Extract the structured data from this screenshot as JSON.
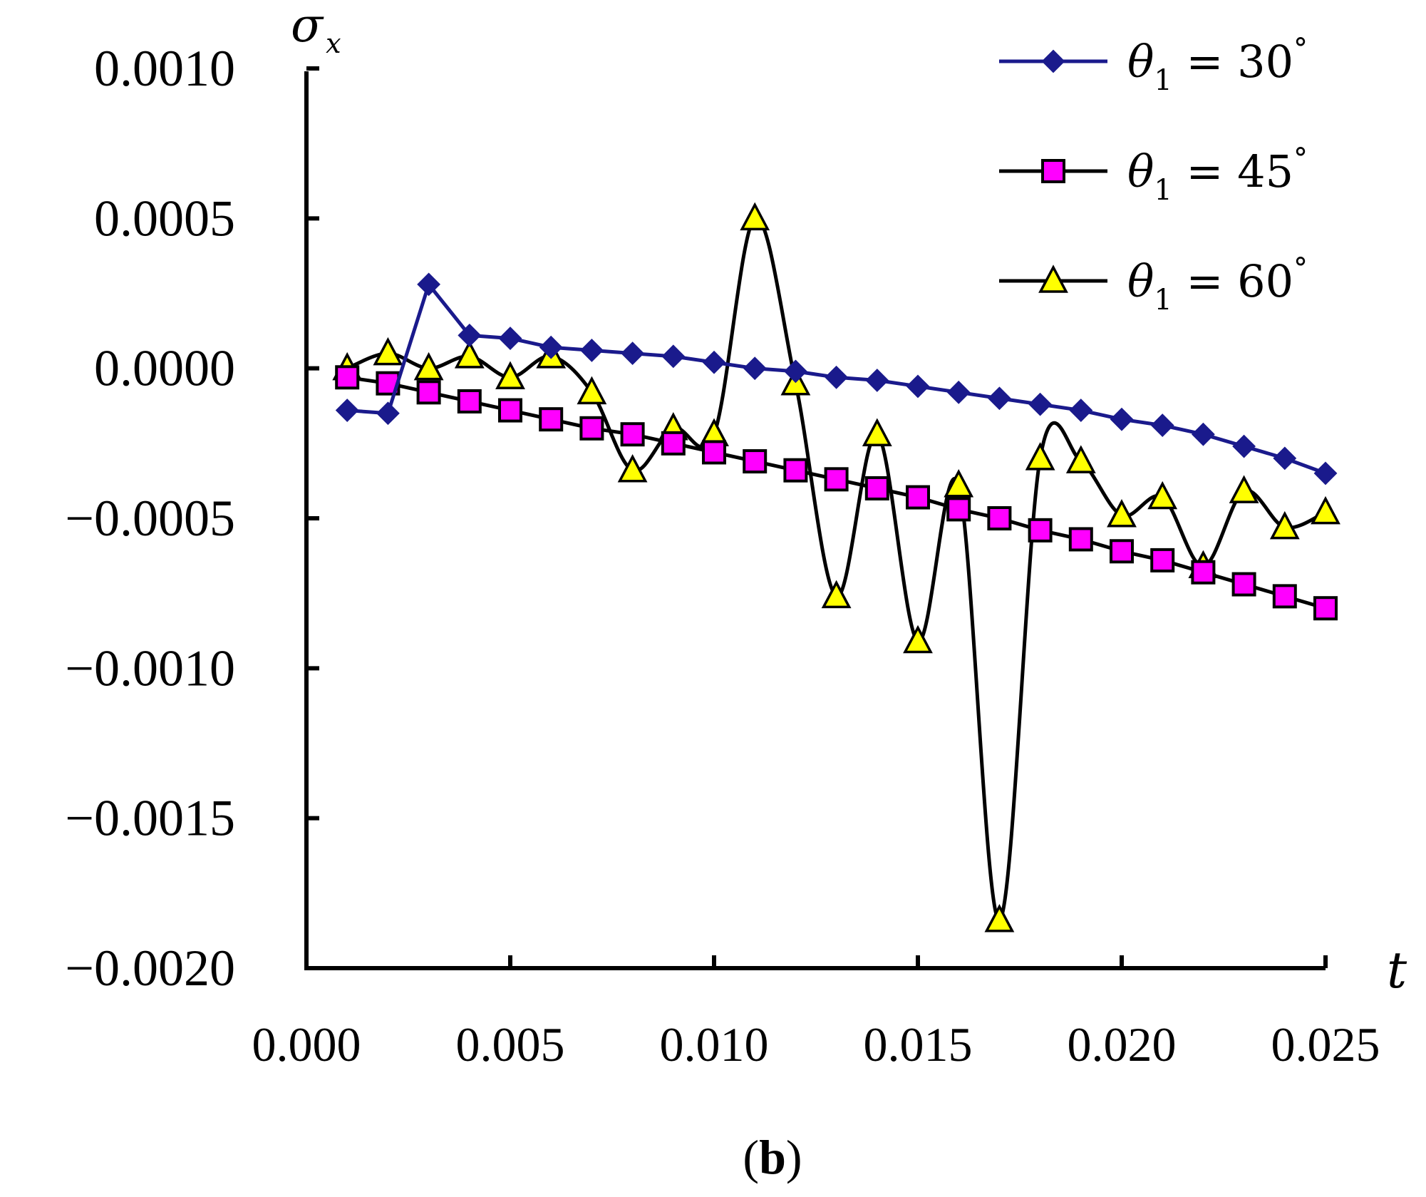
{
  "chart_data": {
    "type": "line",
    "title": "",
    "xlabel": "t",
    "ylabel_symbol": "σ",
    "ylabel_subscript": "x",
    "xlim": [
      0.0,
      0.025
    ],
    "ylim": [
      -0.002,
      0.001
    ],
    "x_ticks": [
      "0.000",
      "0.005",
      "0.010",
      "0.015",
      "0.020",
      "0.025"
    ],
    "y_ticks": [
      "0.0010",
      "0.0005",
      "0.0000",
      "−0.0005",
      "−0.0010",
      "−0.0015",
      "−0.0020"
    ],
    "x_tick_values": [
      0.0,
      0.005,
      0.01,
      0.015,
      0.02,
      0.025
    ],
    "y_tick_values": [
      0.001,
      0.0005,
      0.0,
      -0.0005,
      -0.001,
      -0.0015,
      -0.002
    ],
    "grid": false,
    "legend_position": "top-right",
    "x": [
      0.001,
      0.002,
      0.003,
      0.004,
      0.005,
      0.006,
      0.007,
      0.008,
      0.009,
      0.01,
      0.011,
      0.012,
      0.013,
      0.014,
      0.015,
      0.016,
      0.017,
      0.018,
      0.019,
      0.02,
      0.021,
      0.022,
      0.023,
      0.024,
      0.025
    ],
    "series": [
      {
        "name": "θ1 = 30°",
        "legend_parts": {
          "symbol": "θ",
          "subscript": "1",
          "rest": " = 30",
          "degree": "°"
        },
        "color": "#1a1a8c",
        "marker": "diamond",
        "marker_fill": "#1a1a8c",
        "smooth": false,
        "values": [
          -0.00014,
          -0.00015,
          0.00028,
          0.00011,
          0.0001,
          7e-05,
          6e-05,
          5e-05,
          4e-05,
          2e-05,
          0.0,
          -1e-05,
          -3e-05,
          -4e-05,
          -6e-05,
          -8e-05,
          -0.0001,
          -0.00012,
          -0.00014,
          -0.00017,
          -0.00019,
          -0.00022,
          -0.00026,
          -0.0003,
          -0.00035
        ]
      },
      {
        "name": "θ1 = 45°",
        "legend_parts": {
          "symbol": "θ",
          "subscript": "1",
          "rest": " = 45",
          "degree": "°"
        },
        "color": "#000000",
        "marker": "square",
        "marker_fill": "#ff00ff",
        "smooth": false,
        "values": [
          -3e-05,
          -5e-05,
          -8e-05,
          -0.00011,
          -0.00014,
          -0.00017,
          -0.0002,
          -0.00022,
          -0.00025,
          -0.00028,
          -0.00031,
          -0.00034,
          -0.00037,
          -0.0004,
          -0.00043,
          -0.00047,
          -0.0005,
          -0.00054,
          -0.00057,
          -0.00061,
          -0.00064,
          -0.00068,
          -0.00072,
          -0.00076,
          -0.0008
        ]
      },
      {
        "name": "θ1 = 60°",
        "legend_parts": {
          "symbol": "θ",
          "subscript": "1",
          "rest": " = 60",
          "degree": "°"
        },
        "color": "#000000",
        "marker": "triangle",
        "marker_fill": "#ffff00",
        "smooth": true,
        "values": [
          0.0,
          5e-05,
          0.0,
          4e-05,
          -3e-05,
          4e-05,
          -8e-05,
          -0.00034,
          -0.0002,
          -0.00022,
          0.0005,
          -5e-05,
          -0.00076,
          -0.00022,
          -0.00091,
          -0.00039,
          -0.00184,
          -0.0003,
          -0.00031,
          -0.00049,
          -0.00043,
          -0.00066,
          -0.00041,
          -0.00053,
          -0.00048
        ]
      }
    ],
    "panel_label": {
      "open": "(",
      "letter": "b",
      "close": ")"
    }
  }
}
